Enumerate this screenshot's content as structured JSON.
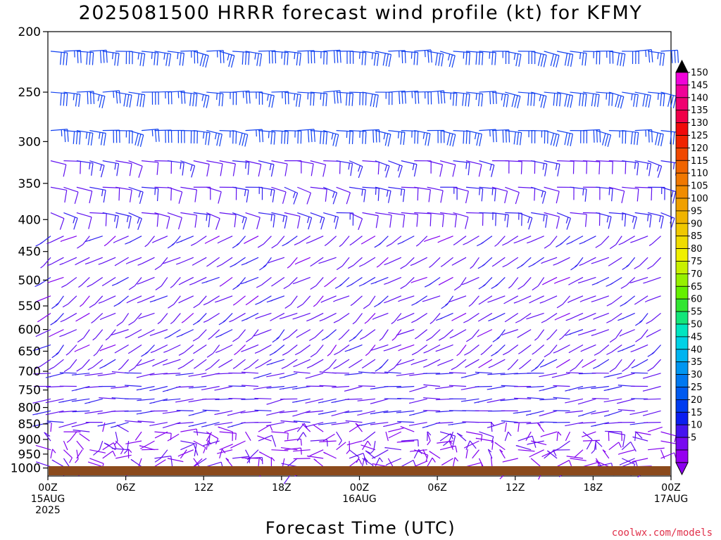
{
  "chart_data": {
    "type": "wind-barb time-height profile",
    "title": "2025081500 HRRR forecast wind profile (kt) for KFMY",
    "xlabel": "Forecast Time (UTC)",
    "credit": "coolwx.com/models",
    "y_ticks": [
      "200",
      "250",
      "300",
      "350",
      "400",
      "450",
      "500",
      "550",
      "600",
      "650",
      "700",
      "750",
      "800",
      "850",
      "900",
      "950",
      "1000"
    ],
    "ylim_hPa": [
      200,
      1030
    ],
    "x_ticks": [
      {
        "hour": 0,
        "line1": "00Z",
        "line2": "15AUG",
        "line3": "2025"
      },
      {
        "hour": 6,
        "line1": "06Z",
        "line2": "",
        "line3": ""
      },
      {
        "hour": 12,
        "line1": "12Z",
        "line2": "",
        "line3": ""
      },
      {
        "hour": 18,
        "line1": "18Z",
        "line2": "",
        "line3": ""
      },
      {
        "hour": 24,
        "line1": "00Z",
        "line2": "16AUG",
        "line3": ""
      },
      {
        "hour": 30,
        "line1": "06Z",
        "line2": "",
        "line3": ""
      },
      {
        "hour": 36,
        "line1": "12Z",
        "line2": "",
        "line3": ""
      },
      {
        "hour": 42,
        "line1": "18Z",
        "line2": "",
        "line3": ""
      },
      {
        "hour": 48,
        "line1": "00Z",
        "line2": "17AUG",
        "line3": ""
      }
    ],
    "xlim_hours": [
      0,
      48
    ],
    "colorbar_ticks": [
      150,
      145,
      140,
      135,
      130,
      125,
      120,
      115,
      110,
      105,
      100,
      95,
      90,
      85,
      80,
      75,
      70,
      65,
      60,
      55,
      50,
      45,
      40,
      35,
      30,
      25,
      20,
      15,
      10,
      5
    ],
    "colorbar_colors": [
      "#f004d8",
      "#f00298",
      "#f00070",
      "#f00048",
      "#f00a0a",
      "#f02400",
      "#f04800",
      "#f06400",
      "#f07800",
      "#f08c00",
      "#f0a000",
      "#f0b400",
      "#f0c800",
      "#f0dc00",
      "#f0f000",
      "#c8f000",
      "#96f000",
      "#64f000",
      "#32e632",
      "#14e67a",
      "#00e6c0",
      "#00d2e6",
      "#00b4f0",
      "#0096f0",
      "#0078f0",
      "#005af0",
      "#003cf0",
      "#0a1ef0",
      "#4614f0",
      "#780af0",
      "#9600f0"
    ],
    "colorbar_top_color": "#000000",
    "colorbar_bottom_color": "#8c00f0",
    "ground_color": "#8b4a1c",
    "barb_colors": {
      "calm": "#8200f0",
      "light": "#6010f0",
      "moderate": "#3020f0",
      "strong": "#1040f0"
    },
    "wind_regimes": [
      {
        "levels_hPa": [
          200,
          300
        ],
        "dir_deg": 100,
        "speed_kt": 30,
        "note": "easterly upper flow"
      },
      {
        "levels_hPa": [
          300,
          400
        ],
        "dir_deg": 110,
        "speed_kt": 15
      },
      {
        "levels_hPa": [
          400,
          700
        ],
        "dir_deg": 220,
        "speed_kt": 12,
        "note": "southwesterly mid-level flow"
      },
      {
        "levels_hPa": [
          700,
          850
        ],
        "dir_deg": 260,
        "speed_kt": 15
      },
      {
        "levels_hPa": [
          850,
          1000
        ],
        "dir_deg": 0,
        "speed_kt": 6,
        "note": "light variable surface winds"
      }
    ]
  }
}
